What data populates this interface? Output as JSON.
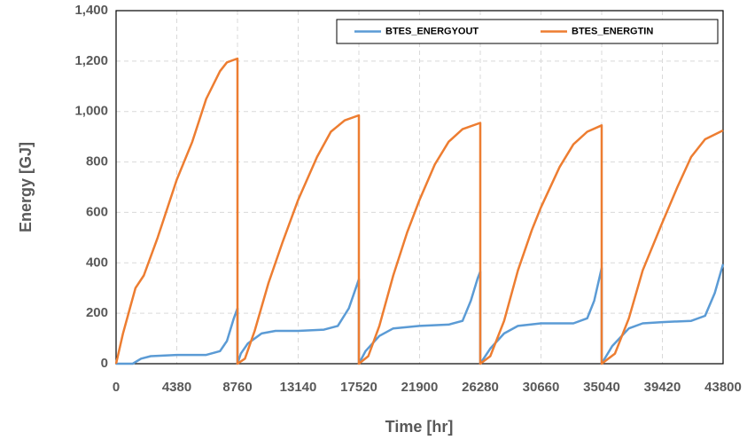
{
  "chart_data": {
    "type": "line",
    "xlabel": "Time [hr]",
    "ylabel": "Energy [GJ]",
    "xlim": [
      0,
      43800
    ],
    "xticks": [
      0,
      4380,
      8760,
      13140,
      17520,
      21900,
      26280,
      30660,
      35040,
      39420,
      43800
    ],
    "ylim": [
      0,
      1400
    ],
    "yticks": [
      0,
      200,
      400,
      600,
      800,
      {
        "value": 1000,
        "label": "1,000"
      },
      {
        "value": 1200,
        "label": "1,200"
      },
      {
        "value": 1400,
        "label": "1,400"
      }
    ],
    "grid": true,
    "legend": "upper right",
    "series": [
      {
        "name": "BTES_ENERGYOUT",
        "color": "#5b9bd5",
        "x": [
          0,
          1200,
          1800,
          2500,
          4380,
          6500,
          7500,
          8000,
          8500,
          8760,
          8760,
          9000,
          9500,
          10500,
          11500,
          13140,
          15000,
          16000,
          16800,
          17300,
          17520,
          17520,
          18000,
          19000,
          20000,
          21900,
          24000,
          25000,
          25600,
          26100,
          26280,
          26280,
          27000,
          28000,
          29000,
          30660,
          33000,
          34000,
          34500,
          35040,
          35040,
          35800,
          37000,
          38000,
          39420,
          41500,
          42500,
          43200,
          43800
        ],
        "values": [
          0,
          0,
          20,
          30,
          35,
          35,
          50,
          90,
          180,
          220,
          0,
          40,
          80,
          120,
          130,
          130,
          135,
          150,
          220,
          300,
          335,
          0,
          50,
          110,
          140,
          150,
          155,
          170,
          250,
          340,
          365,
          0,
          60,
          120,
          150,
          160,
          160,
          180,
          250,
          380,
          0,
          70,
          140,
          160,
          165,
          170,
          190,
          280,
          395
        ]
      },
      {
        "name": "BTES_ENERGTIN",
        "color": "#ed7d31",
        "x": [
          0,
          500,
          1000,
          1400,
          2000,
          3000,
          4380,
          5500,
          6500,
          7500,
          8000,
          8760,
          8760,
          9300,
          10000,
          11000,
          12000,
          13140,
          14500,
          15500,
          16500,
          17520,
          17520,
          18200,
          19000,
          20000,
          21000,
          21900,
          23000,
          24000,
          25000,
          26280,
          26280,
          27000,
          28000,
          29000,
          30000,
          30660,
          32000,
          33000,
          34000,
          35040,
          35040,
          36000,
          37000,
          38000,
          39420,
          40500,
          41500,
          42500,
          43800
        ],
        "values": [
          0,
          120,
          220,
          300,
          350,
          500,
          730,
          880,
          1050,
          1160,
          1195,
          1210,
          0,
          20,
          130,
          320,
          480,
          650,
          820,
          920,
          965,
          985,
          0,
          30,
          150,
          350,
          520,
          650,
          790,
          880,
          930,
          955,
          0,
          30,
          170,
          370,
          530,
          620,
          780,
          870,
          920,
          945,
          0,
          40,
          180,
          370,
          560,
          700,
          820,
          890,
          925
        ]
      }
    ]
  }
}
